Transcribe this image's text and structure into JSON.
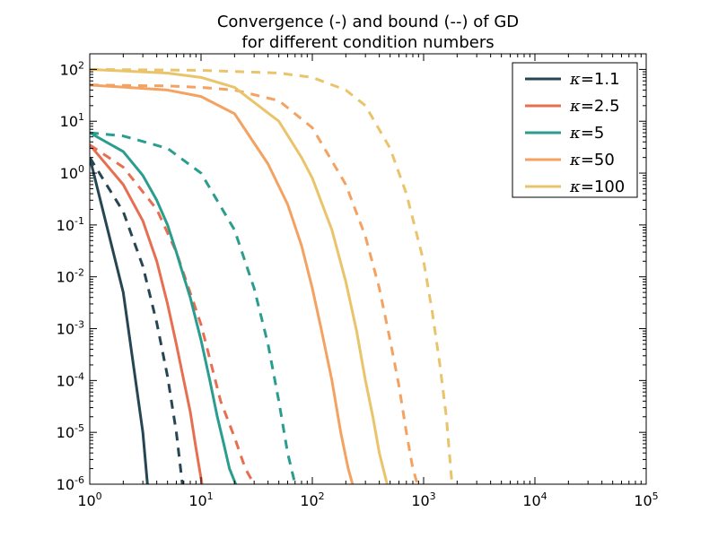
{
  "chart_data": {
    "type": "line",
    "title": "Convergence (-) and bound (--) of GD",
    "subtitle": "for different condition numbers",
    "xlabel": "",
    "ylabel": "",
    "xscale": "log",
    "yscale": "log",
    "xlim": [
      1,
      100000
    ],
    "ylim": [
      1e-06,
      200
    ],
    "xticks": [
      {
        "value": 1,
        "base": "10",
        "exp": "0"
      },
      {
        "value": 10,
        "base": "10",
        "exp": "1"
      },
      {
        "value": 100,
        "base": "10",
        "exp": "2"
      },
      {
        "value": 1000,
        "base": "10",
        "exp": "3"
      },
      {
        "value": 10000,
        "base": "10",
        "exp": "4"
      },
      {
        "value": 100000,
        "base": "10",
        "exp": "5"
      }
    ],
    "yticks": [
      {
        "value": 100,
        "base": "10",
        "exp": "2"
      },
      {
        "value": 10,
        "base": "10",
        "exp": "1"
      },
      {
        "value": 1,
        "base": "10",
        "exp": "0"
      },
      {
        "value": 0.1,
        "base": "10",
        "exp": "-1"
      },
      {
        "value": 0.01,
        "base": "10",
        "exp": "-2"
      },
      {
        "value": 0.001,
        "base": "10",
        "exp": "-3"
      },
      {
        "value": 0.0001,
        "base": "10",
        "exp": "-4"
      },
      {
        "value": 1e-05,
        "base": "10",
        "exp": "-5"
      },
      {
        "value": 1e-06,
        "base": "10",
        "exp": "-6"
      }
    ],
    "grid": false,
    "legend_position": "top-right",
    "series": [
      {
        "name": "κ=1.1",
        "legend_symbol": "κ",
        "legend_value": "=1.1",
        "color": "#264653",
        "convergence": {
          "x": [
            1,
            2,
            3,
            3.3
          ],
          "y": [
            2.0,
            0.005,
            1e-05,
            1e-06
          ]
        },
        "bound": {
          "x": [
            1,
            2,
            3,
            4,
            5,
            6,
            6.8
          ],
          "y": [
            2.0,
            0.18,
            0.016,
            0.0013,
            0.00012,
            1e-05,
            1e-06
          ]
        }
      },
      {
        "name": "κ=2.5",
        "legend_symbol": "κ",
        "legend_value": "=2.5",
        "color": "#E76F51",
        "convergence": {
          "x": [
            1,
            2,
            3,
            4,
            5,
            6,
            7,
            8,
            9,
            10.2
          ],
          "y": [
            3.5,
            0.6,
            0.12,
            0.02,
            0.003,
            0.0005,
            0.0001,
            2.5e-05,
            5e-06,
            1e-06
          ]
        },
        "bound": {
          "x": [
            1,
            2,
            4,
            6,
            10,
            15,
            20,
            25,
            30
          ],
          "y": [
            3.5,
            1.3,
            0.2,
            0.03,
            0.0012,
            4e-05,
            8e-06,
            2e-06,
            1e-06
          ]
        }
      },
      {
        "name": "κ=5",
        "legend_symbol": "κ",
        "legend_value": "=5",
        "color": "#2A9D8F",
        "convergence": {
          "x": [
            1,
            2,
            3,
            4,
            5,
            6,
            7,
            8,
            10,
            12,
            14,
            16,
            18,
            20.5
          ],
          "y": [
            6.0,
            2.6,
            0.9,
            0.3,
            0.1,
            0.03,
            0.01,
            0.004,
            0.0006,
            0.0001,
            2e-05,
            6e-06,
            2e-06,
            1e-06
          ]
        },
        "bound": {
          "x": [
            1,
            2,
            5,
            10,
            20,
            30,
            40,
            50,
            60,
            70
          ],
          "y": [
            6.0,
            5.2,
            3.0,
            1.0,
            0.08,
            0.006,
            0.0005,
            4e-05,
            4e-06,
            1e-06
          ]
        }
      },
      {
        "name": "κ=50",
        "legend_symbol": "κ",
        "legend_value": "=50",
        "color": "#F4A261",
        "convergence": {
          "x": [
            1,
            5,
            10,
            20,
            40,
            60,
            80,
            100,
            120,
            150,
            180,
            210,
            230
          ],
          "y": [
            50,
            40,
            30,
            14,
            1.5,
            0.25,
            0.04,
            0.006,
            0.001,
            0.0001,
            1e-05,
            2e-06,
            1e-06
          ]
        },
        "bound": {
          "x": [
            1,
            5,
            10,
            20,
            50,
            100,
            200,
            300,
            400,
            500,
            600,
            700,
            800,
            880
          ],
          "y": [
            50,
            48,
            45,
            40,
            25,
            7.5,
            0.6,
            0.06,
            0.006,
            0.0006,
            8e-05,
            1e-05,
            2e-06,
            1e-06
          ]
        }
      },
      {
        "name": "κ=100",
        "legend_symbol": "κ",
        "legend_value": "=100",
        "color": "#E9C46A",
        "convergence": {
          "x": [
            1,
            5,
            10,
            20,
            50,
            80,
            100,
            150,
            200,
            250,
            300,
            350,
            400,
            470
          ],
          "y": [
            100,
            85,
            70,
            45,
            10,
            2.0,
            0.8,
            0.08,
            0.008,
            0.0009,
            0.0001,
            2e-05,
            4e-06,
            1e-06
          ]
        },
        "bound": {
          "x": [
            1,
            10,
            50,
            100,
            200,
            300,
            500,
            700,
            1000,
            1200,
            1400,
            1600,
            1800
          ],
          "y": [
            100,
            96,
            85,
            70,
            40,
            20,
            3.0,
            0.4,
            0.02,
            0.002,
            0.0002,
            2e-05,
            1e-06
          ]
        }
      }
    ]
  }
}
